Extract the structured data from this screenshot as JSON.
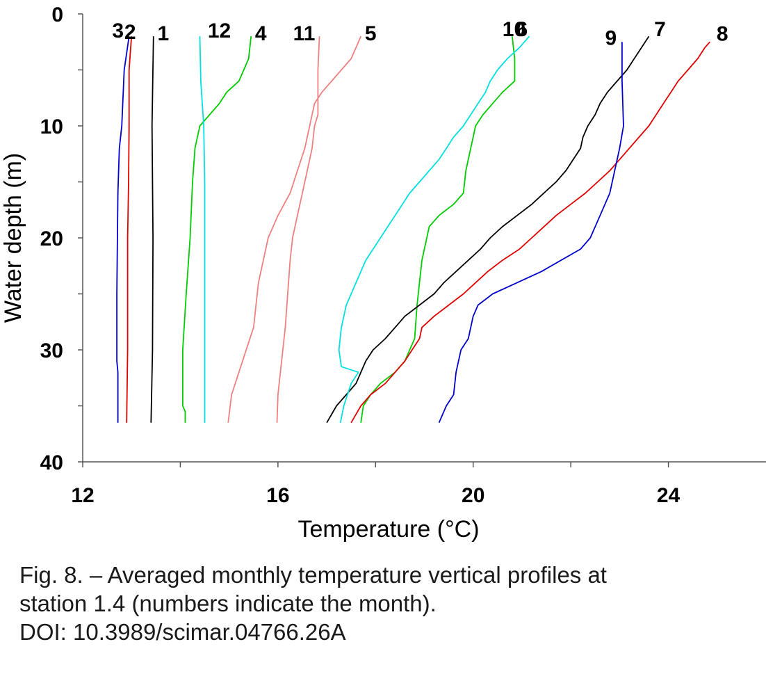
{
  "chart_data": {
    "type": "line",
    "xlabel": "Temperature (°C)",
    "ylabel": "Water depth (m)",
    "xlim": [
      12,
      26
    ],
    "ylim": [
      0,
      40
    ],
    "y_inverted": true,
    "x_ticks": [
      12,
      16,
      20,
      24
    ],
    "x_minor_ticks": [
      14,
      18,
      22
    ],
    "y_ticks": [
      0,
      10,
      20,
      30,
      40
    ],
    "y_minor_ticks": [
      5,
      15,
      25,
      35
    ],
    "grid": false,
    "series": [
      {
        "name": "1",
        "color": "#000000",
        "points": [
          [
            13.45,
            2
          ],
          [
            13.42,
            10
          ],
          [
            13.44,
            20
          ],
          [
            13.43,
            30
          ],
          [
            13.4,
            36.5
          ]
        ]
      },
      {
        "name": "2",
        "color": "#e00000",
        "points": [
          [
            13.0,
            2
          ],
          [
            12.95,
            5
          ],
          [
            12.95,
            10
          ],
          [
            12.94,
            15
          ],
          [
            12.92,
            20
          ],
          [
            12.92,
            30
          ],
          [
            12.9,
            36.5
          ]
        ]
      },
      {
        "name": "3",
        "color": "#0000cc",
        "points": [
          [
            12.95,
            2
          ],
          [
            12.85,
            5
          ],
          [
            12.8,
            10
          ],
          [
            12.75,
            12
          ],
          [
            12.72,
            16
          ],
          [
            12.7,
            25
          ],
          [
            12.7,
            31
          ],
          [
            12.72,
            32
          ],
          [
            12.72,
            36.5
          ]
        ]
      },
      {
        "name": "4",
        "color": "#00cc00",
        "points": [
          [
            15.45,
            2
          ],
          [
            15.4,
            4
          ],
          [
            15.2,
            6
          ],
          [
            14.95,
            7
          ],
          [
            14.8,
            8
          ],
          [
            14.6,
            9
          ],
          [
            14.4,
            10
          ],
          [
            14.3,
            12
          ],
          [
            14.25,
            15
          ],
          [
            14.2,
            20
          ],
          [
            14.12,
            25
          ],
          [
            14.05,
            30
          ],
          [
            14.05,
            35
          ],
          [
            14.1,
            35.5
          ],
          [
            14.1,
            36.5
          ]
        ]
      },
      {
        "name": "5",
        "color": "#f08080",
        "points": [
          [
            17.7,
            2
          ],
          [
            17.5,
            4
          ],
          [
            17.3,
            5
          ],
          [
            17.1,
            6
          ],
          [
            16.9,
            7
          ],
          [
            16.75,
            8
          ],
          [
            16.65,
            10
          ],
          [
            16.55,
            12
          ],
          [
            16.4,
            14
          ],
          [
            16.25,
            16
          ],
          [
            16.0,
            18
          ],
          [
            15.8,
            20
          ],
          [
            15.7,
            22
          ],
          [
            15.6,
            24
          ],
          [
            15.55,
            26
          ],
          [
            15.5,
            28
          ],
          [
            15.35,
            30
          ],
          [
            15.2,
            32
          ],
          [
            15.05,
            34
          ],
          [
            14.98,
            36.5
          ]
        ]
      },
      {
        "name": "6",
        "color": "#00cc00",
        "points": [
          [
            20.8,
            2
          ],
          [
            20.85,
            4
          ],
          [
            20.85,
            6
          ],
          [
            20.6,
            7
          ],
          [
            20.4,
            8
          ],
          [
            20.2,
            9
          ],
          [
            20.05,
            10
          ],
          [
            19.95,
            12
          ],
          [
            19.85,
            14
          ],
          [
            19.8,
            16
          ],
          [
            19.6,
            17
          ],
          [
            19.3,
            18
          ],
          [
            19.1,
            19
          ],
          [
            18.95,
            22
          ],
          [
            18.9,
            24
          ],
          [
            18.85,
            26
          ],
          [
            18.8,
            29
          ],
          [
            18.6,
            31
          ],
          [
            18.4,
            32
          ],
          [
            18.1,
            33
          ],
          [
            17.9,
            34
          ],
          [
            17.75,
            35
          ],
          [
            17.7,
            36.5
          ]
        ]
      },
      {
        "name": "7",
        "color": "#000000",
        "points": [
          [
            23.6,
            2
          ],
          [
            23.45,
            3
          ],
          [
            23.3,
            4
          ],
          [
            23.15,
            5
          ],
          [
            22.95,
            6
          ],
          [
            22.75,
            7
          ],
          [
            22.6,
            8
          ],
          [
            22.5,
            9
          ],
          [
            22.35,
            10
          ],
          [
            22.25,
            11
          ],
          [
            22.2,
            12
          ],
          [
            22.05,
            13
          ],
          [
            21.9,
            14
          ],
          [
            21.7,
            15
          ],
          [
            21.45,
            16
          ],
          [
            21.2,
            17
          ],
          [
            20.9,
            18
          ],
          [
            20.6,
            19
          ],
          [
            20.35,
            20
          ],
          [
            20.15,
            21
          ],
          [
            19.9,
            22
          ],
          [
            19.65,
            23
          ],
          [
            19.4,
            24
          ],
          [
            19.2,
            25
          ],
          [
            18.9,
            26
          ],
          [
            18.6,
            27
          ],
          [
            18.4,
            28
          ],
          [
            18.2,
            29
          ],
          [
            17.95,
            30
          ],
          [
            17.8,
            31
          ],
          [
            17.6,
            33
          ],
          [
            17.4,
            34
          ],
          [
            17.2,
            35
          ],
          [
            17.0,
            36.5
          ]
        ]
      },
      {
        "name": "8",
        "color": "#e00000",
        "points": [
          [
            24.85,
            2.5
          ],
          [
            24.75,
            3
          ],
          [
            24.6,
            4
          ],
          [
            24.4,
            5
          ],
          [
            24.2,
            6
          ],
          [
            24.05,
            7
          ],
          [
            23.9,
            8
          ],
          [
            23.75,
            9
          ],
          [
            23.6,
            10
          ],
          [
            23.4,
            11
          ],
          [
            23.2,
            12
          ],
          [
            23.0,
            13
          ],
          [
            22.8,
            14
          ],
          [
            22.55,
            15
          ],
          [
            22.3,
            16
          ],
          [
            22.0,
            17
          ],
          [
            21.7,
            18
          ],
          [
            21.45,
            19
          ],
          [
            21.2,
            20
          ],
          [
            20.95,
            21
          ],
          [
            20.6,
            22
          ],
          [
            20.3,
            23
          ],
          [
            20.05,
            24
          ],
          [
            19.8,
            25
          ],
          [
            19.5,
            26
          ],
          [
            19.2,
            27
          ],
          [
            18.95,
            28
          ],
          [
            18.9,
            29
          ],
          [
            18.75,
            30
          ],
          [
            18.6,
            31
          ],
          [
            18.4,
            32
          ],
          [
            18.2,
            33
          ],
          [
            17.9,
            34
          ],
          [
            17.7,
            35
          ],
          [
            17.5,
            36.5
          ]
        ]
      },
      {
        "name": "9",
        "color": "#0000cc",
        "points": [
          [
            23.05,
            2.5
          ],
          [
            23.05,
            6
          ],
          [
            23.08,
            10
          ],
          [
            23.0,
            12
          ],
          [
            22.9,
            14
          ],
          [
            22.8,
            16
          ],
          [
            22.6,
            18
          ],
          [
            22.4,
            20
          ],
          [
            22.2,
            21
          ],
          [
            21.8,
            22
          ],
          [
            21.4,
            23
          ],
          [
            20.9,
            24
          ],
          [
            20.4,
            25
          ],
          [
            20.1,
            26
          ],
          [
            20.0,
            27
          ],
          [
            19.9,
            29
          ],
          [
            19.75,
            30
          ],
          [
            19.65,
            32
          ],
          [
            19.6,
            34
          ],
          [
            19.45,
            35
          ],
          [
            19.3,
            36.5
          ]
        ]
      },
      {
        "name": "10",
        "color": "#00e0e0",
        "points": [
          [
            21.15,
            2
          ],
          [
            20.95,
            3
          ],
          [
            20.7,
            4
          ],
          [
            20.5,
            5
          ],
          [
            20.35,
            6
          ],
          [
            20.25,
            7
          ],
          [
            20.1,
            8
          ],
          [
            19.95,
            9
          ],
          [
            19.8,
            10
          ],
          [
            19.6,
            11
          ],
          [
            19.45,
            12
          ],
          [
            19.3,
            13
          ],
          [
            19.1,
            14
          ],
          [
            18.9,
            15
          ],
          [
            18.7,
            16
          ],
          [
            18.55,
            17
          ],
          [
            18.4,
            18
          ],
          [
            18.25,
            19
          ],
          [
            18.1,
            20
          ],
          [
            17.95,
            21
          ],
          [
            17.8,
            22
          ],
          [
            17.7,
            23
          ],
          [
            17.6,
            24
          ],
          [
            17.5,
            25
          ],
          [
            17.4,
            26
          ],
          [
            17.3,
            28
          ],
          [
            17.25,
            30
          ],
          [
            17.3,
            31.5
          ],
          [
            17.65,
            32
          ],
          [
            17.5,
            33
          ],
          [
            17.35,
            35
          ],
          [
            17.28,
            36.5
          ]
        ]
      },
      {
        "name": "11",
        "color": "#f08080",
        "points": [
          [
            16.85,
            2
          ],
          [
            16.82,
            5
          ],
          [
            16.82,
            9
          ],
          [
            16.75,
            10
          ],
          [
            16.7,
            12
          ],
          [
            16.6,
            14
          ],
          [
            16.5,
            16
          ],
          [
            16.4,
            18
          ],
          [
            16.3,
            20
          ],
          [
            16.25,
            22
          ],
          [
            16.2,
            25
          ],
          [
            16.15,
            28
          ],
          [
            16.1,
            30
          ],
          [
            16.05,
            32
          ],
          [
            16.0,
            34
          ],
          [
            15.98,
            36.5
          ]
        ]
      },
      {
        "name": "12",
        "color": "#00e0e0",
        "points": [
          [
            14.4,
            2
          ],
          [
            14.42,
            6
          ],
          [
            14.48,
            10
          ],
          [
            14.5,
            15
          ],
          [
            14.5,
            20
          ],
          [
            14.5,
            30
          ],
          [
            14.5,
            36.5
          ]
        ]
      }
    ]
  },
  "caption": {
    "line1": "Fig. 8. – Averaged monthly temperature vertical profiles at",
    "line2": "station 1.4 (numbers indicate the month).",
    "line3": "DOI: 10.3989/scimar.04766.26A"
  }
}
